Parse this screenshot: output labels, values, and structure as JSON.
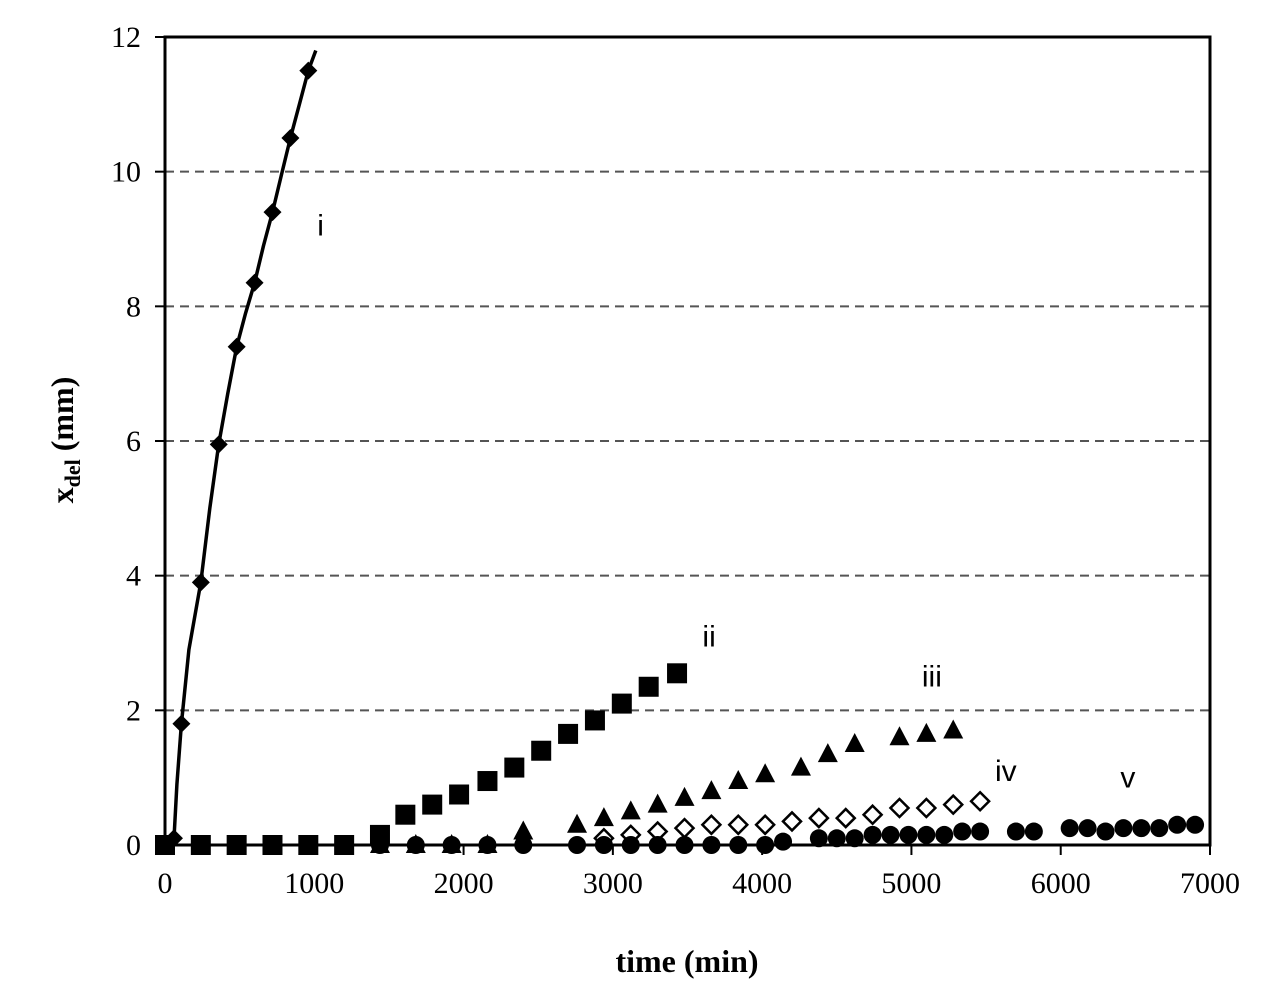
{
  "chart_data": {
    "type": "scatter",
    "xlabel": "time (min)",
    "ylabel_main": "x",
    "ylabel_sub": "del",
    "ylabel_unit": "(mm)",
    "xlim": [
      0,
      7000
    ],
    "ylim": [
      0,
      12
    ],
    "x_ticks": [
      "0",
      "1000",
      "2000",
      "3000",
      "4000",
      "5000",
      "6000",
      "7000"
    ],
    "y_ticks": [
      "0",
      "2",
      "4",
      "6",
      "8",
      "10",
      "12"
    ],
    "grid": "horizontal dashed",
    "series": [
      {
        "name": "i",
        "marker": "diamond",
        "fill": "filled",
        "line": true,
        "label_at": [
          1020,
          9.2
        ],
        "x": [
          0,
          60,
          110,
          240,
          360,
          480,
          600,
          720,
          840,
          960
        ],
        "y": [
          0,
          0.1,
          1.8,
          3.9,
          5.95,
          7.4,
          8.35,
          9.4,
          10.5,
          11.5
        ],
        "line_x": [
          0,
          60,
          80,
          110,
          160,
          240,
          300,
          360,
          420,
          480,
          540,
          600,
          660,
          720,
          780,
          840,
          900,
          960,
          1010
        ],
        "line_y": [
          0,
          0.1,
          0.9,
          1.8,
          2.9,
          3.9,
          5.0,
          5.95,
          6.7,
          7.4,
          7.9,
          8.35,
          8.9,
          9.4,
          9.95,
          10.5,
          11.0,
          11.5,
          11.8
        ]
      },
      {
        "name": "ii",
        "marker": "square",
        "fill": "filled",
        "line": false,
        "label_at": [
          3600,
          3.1
        ],
        "x": [
          0,
          240,
          480,
          720,
          960,
          1200,
          1440,
          1610,
          1790,
          1970,
          2160,
          2340,
          2520,
          2700,
          2880,
          3060,
          3240,
          3430
        ],
        "y": [
          0,
          0,
          0,
          0,
          0,
          0,
          0.15,
          0.45,
          0.6,
          0.75,
          0.95,
          1.15,
          1.4,
          1.65,
          1.85,
          2.1,
          2.35,
          2.55
        ]
      },
      {
        "name": "iii",
        "marker": "triangle",
        "fill": "filled",
        "line": false,
        "label_at": [
          5070,
          2.5
        ],
        "x": [
          1440,
          1680,
          1920,
          2160,
          2400,
          2760,
          2940,
          3120,
          3300,
          3480,
          3660,
          3840,
          4020,
          4260,
          4440,
          4620,
          4920,
          5100,
          5280
        ],
        "y": [
          0,
          0,
          0,
          0,
          0.2,
          0.3,
          0.4,
          0.5,
          0.6,
          0.7,
          0.8,
          0.95,
          1.05,
          1.15,
          1.35,
          1.5,
          1.6,
          1.65,
          1.7
        ]
      },
      {
        "name": "iv",
        "marker": "diamond",
        "fill": "open",
        "line": false,
        "label_at": [
          5560,
          1.1
        ],
        "x": [
          2940,
          3120,
          3300,
          3480,
          3660,
          3840,
          4020,
          4200,
          4380,
          4560,
          4740,
          4920,
          5100,
          5280,
          5460
        ],
        "y": [
          0.1,
          0.15,
          0.2,
          0.25,
          0.3,
          0.3,
          0.3,
          0.35,
          0.4,
          0.4,
          0.45,
          0.55,
          0.55,
          0.6,
          0.65
        ]
      },
      {
        "name": "v",
        "marker": "circle",
        "fill": "filled",
        "line": false,
        "label_at": [
          6400,
          1.0
        ],
        "x": [
          0,
          240,
          480,
          720,
          960,
          1200,
          1440,
          1680,
          1920,
          2160,
          2400,
          2760,
          2940,
          3120,
          3300,
          3480,
          3660,
          3840,
          4020,
          4140,
          4380,
          4500,
          4620,
          4740,
          4860,
          4980,
          5100,
          5220,
          5340,
          5460,
          5700,
          5820,
          6060,
          6180,
          6300,
          6420,
          6540,
          6660,
          6780,
          6900
        ],
        "y": [
          0,
          0,
          0,
          0,
          0,
          0,
          0,
          0,
          0,
          0,
          0,
          0,
          0,
          0,
          0,
          0,
          0,
          0,
          0,
          0.05,
          0.1,
          0.1,
          0.1,
          0.15,
          0.15,
          0.15,
          0.15,
          0.15,
          0.2,
          0.2,
          0.2,
          0.2,
          0.25,
          0.25,
          0.2,
          0.25,
          0.25,
          0.25,
          0.3,
          0.3
        ]
      }
    ]
  }
}
